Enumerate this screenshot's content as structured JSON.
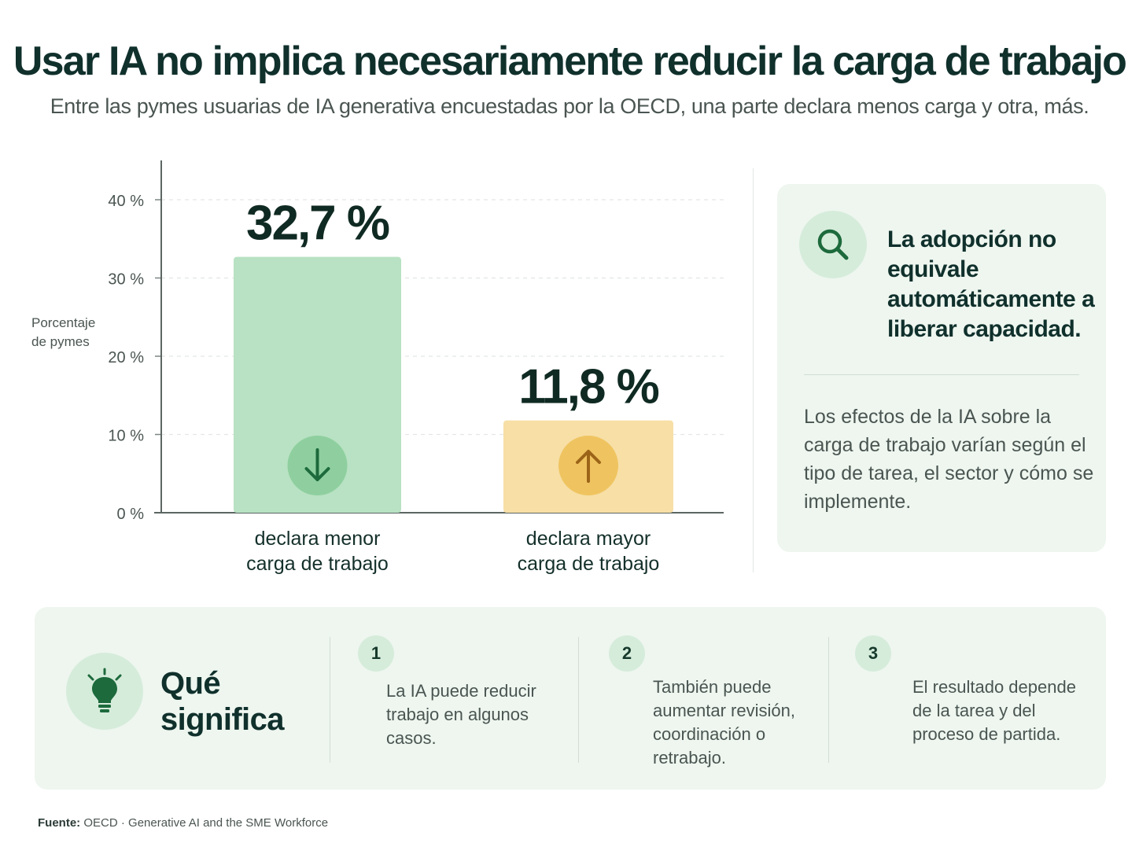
{
  "title": "Usar IA no implica necesariamente reducir la carga de trabajo",
  "subtitle": "Entre las pymes usuarias de IA generativa encuestadas por la OECD, una parte declara menos carga y otra, más.",
  "chart_data": {
    "type": "bar",
    "categories": [
      "declara menor carga de trabajo",
      "declara mayor carga de trabajo"
    ],
    "category_lines": [
      [
        "declara menor",
        "carga de trabajo"
      ],
      [
        "declara mayor",
        "carga de trabajo"
      ]
    ],
    "values": [
      32.7,
      11.8
    ],
    "value_labels": [
      "32,7 %",
      "11,8 %"
    ],
    "ylabel_lines": [
      "Porcentaje",
      "de pymes"
    ],
    "ylim": [
      0,
      40
    ],
    "yticks": [
      0,
      10,
      20,
      30,
      40
    ],
    "ytick_labels": [
      "0 %",
      "10 %",
      "20 %",
      "30 %",
      "40 %"
    ],
    "bar_colors": [
      "#b8e2c3",
      "#f7dfa6"
    ],
    "badge_colors": [
      "#8fcf9f",
      "#efc460"
    ],
    "arrow_colors": [
      "#1d6a3c",
      "#9c6418"
    ],
    "bar_icons": [
      "arrow-down-icon",
      "arrow-up-icon"
    ],
    "grid": true,
    "legend": "none"
  },
  "side_panel": {
    "icon": "search-icon",
    "heading": "La adopción no equivale automáticamente a liberar capacidad.",
    "text": "Los efectos de la IA sobre la carga de trabajo varían según el tipo de tarea, el sector y cómo se implemente."
  },
  "meaning": {
    "icon": "lightbulb-icon",
    "heading": "Qué\nsignifica",
    "items": [
      {
        "number": "1",
        "text": "La IA puede reducir trabajo en algunos casos."
      },
      {
        "number": "2",
        "text": "También puede aumentar revisión, coordinación o retrabajo."
      },
      {
        "number": "3",
        "text": "El resultado depende de la tarea y del proceso de partida."
      }
    ]
  },
  "source": {
    "label": "Fuente:",
    "org": "OECD",
    "separator": "·",
    "publication": "Generative AI and the SME Workforce"
  },
  "colors": {
    "accent_green": "#1d6a3c",
    "panel_bg": "#eef6ef",
    "icon_circle": "#d6ecdb"
  }
}
